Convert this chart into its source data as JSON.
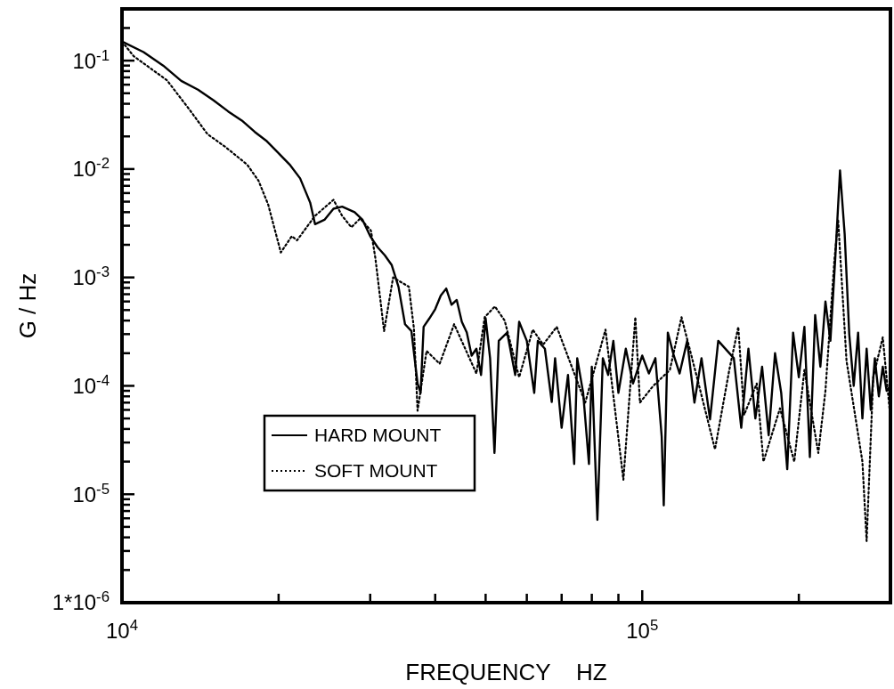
{
  "chart_data": {
    "type": "line",
    "xlabel": "FREQUENCY    HZ",
    "ylabel": "G / Hz",
    "log": "xy",
    "xlim": [
      10000,
      300000
    ],
    "ylim": [
      1e-06,
      0.3
    ],
    "xticks": [
      {
        "value": 10000,
        "label": "10$^{4}$"
      },
      {
        "value": 20000,
        "label": null
      },
      {
        "value": 30000,
        "label": null
      },
      {
        "value": 40000,
        "label": null
      },
      {
        "value": 50000,
        "label": null
      },
      {
        "value": 60000,
        "label": null
      },
      {
        "value": 70000,
        "label": null
      },
      {
        "value": 80000,
        "label": null
      },
      {
        "value": 90000,
        "label": null
      },
      {
        "value": 100000,
        "label": "10$^{5}$"
      },
      {
        "value": 200000,
        "label": null
      }
    ],
    "yticks": [
      {
        "value": 1e-06,
        "label": "1*10$^{-6}$"
      },
      {
        "value": 2e-06,
        "label": null
      },
      {
        "value": 3e-06,
        "label": null
      },
      {
        "value": 4e-06,
        "label": null
      },
      {
        "value": 5e-06,
        "label": null
      },
      {
        "value": 6e-06,
        "label": null
      },
      {
        "value": 7e-06,
        "label": null
      },
      {
        "value": 8e-06,
        "label": null
      },
      {
        "value": 9e-06,
        "label": null
      },
      {
        "value": 1e-05,
        "label": "10$^{-5}$"
      },
      {
        "value": 2e-05,
        "label": null
      },
      {
        "value": 3e-05,
        "label": null
      },
      {
        "value": 4e-05,
        "label": null
      },
      {
        "value": 5e-05,
        "label": null
      },
      {
        "value": 6e-05,
        "label": null
      },
      {
        "value": 7e-05,
        "label": null
      },
      {
        "value": 8e-05,
        "label": null
      },
      {
        "value": 9e-05,
        "label": null
      },
      {
        "value": 0.0001,
        "label": "10$^{-4}$"
      },
      {
        "value": 0.0002,
        "label": null
      },
      {
        "value": 0.0003,
        "label": null
      },
      {
        "value": 0.0004,
        "label": null
      },
      {
        "value": 0.0005,
        "label": null
      },
      {
        "value": 0.0006,
        "label": null
      },
      {
        "value": 0.0007,
        "label": null
      },
      {
        "value": 0.0008,
        "label": null
      },
      {
        "value": 0.0009,
        "label": null
      },
      {
        "value": 0.001,
        "label": "10$^{-3}$"
      },
      {
        "value": 0.002,
        "label": null
      },
      {
        "value": 0.003,
        "label": null
      },
      {
        "value": 0.004,
        "label": null
      },
      {
        "value": 0.005,
        "label": null
      },
      {
        "value": 0.006,
        "label": null
      },
      {
        "value": 0.007,
        "label": null
      },
      {
        "value": 0.008,
        "label": null
      },
      {
        "value": 0.009,
        "label": null
      },
      {
        "value": 0.01,
        "label": "10$^{-2}$"
      },
      {
        "value": 0.02,
        "label": null
      },
      {
        "value": 0.03,
        "label": null
      },
      {
        "value": 0.04,
        "label": null
      },
      {
        "value": 0.05,
        "label": null
      },
      {
        "value": 0.06,
        "label": null
      },
      {
        "value": 0.07,
        "label": null
      },
      {
        "value": 0.08,
        "label": null
      },
      {
        "value": 0.09,
        "label": null
      },
      {
        "value": 0.1,
        "label": "10$^{-1}$"
      },
      {
        "value": 0.2,
        "label": null
      }
    ],
    "grid": false,
    "legend": "bottom left",
    "marker": "none",
    "series": [
      {
        "name": "HARD MOUNT",
        "color": "#000000",
        "line_style": "solid",
        "x": [
          10000,
          11000,
          12000,
          13000,
          14000,
          15000,
          16000,
          17000,
          18000,
          19000,
          20000,
          21000,
          22000,
          23000,
          23500,
          24500,
          25500,
          26500,
          28000,
          29000,
          30000,
          31000,
          32000,
          33000,
          34000,
          35000,
          36000,
          37000,
          37500,
          38000,
          39000,
          40000,
          41000,
          42000,
          43000,
          44000,
          45000,
          46000,
          47000,
          48000,
          49000,
          50000,
          51000,
          52000,
          53000,
          55000,
          57000,
          58000,
          60000,
          62000,
          63000,
          65000,
          67000,
          68000,
          70000,
          72000,
          74000,
          75000,
          77000,
          79000,
          80000,
          82000,
          84000,
          86000,
          88000,
          90000,
          93000,
          96000,
          100000,
          103000,
          106000,
          109000,
          110000,
          112000,
          115000,
          118000,
          122000,
          126000,
          130000,
          135000,
          140000,
          150000,
          155000,
          160000,
          165000,
          170000,
          175000,
          180000,
          185000,
          190000,
          195000,
          200000,
          205000,
          210000,
          215000,
          220000,
          225000,
          230000,
          235000,
          240000,
          245000,
          250000,
          255000,
          260000,
          265000,
          270000,
          275000,
          280000,
          285000,
          290000,
          295000,
          300000
        ],
        "values": [
          0.15,
          0.12,
          0.09,
          0.065,
          0.054,
          0.043,
          0.034,
          0.028,
          0.022,
          0.018,
          0.014,
          0.011,
          0.0082,
          0.0049,
          0.0031,
          0.0034,
          0.0043,
          0.0045,
          0.004,
          0.0034,
          0.0024,
          0.0019,
          0.0016,
          0.0013,
          0.00082,
          0.00037,
          0.00032,
          0.000105,
          8.6e-05,
          0.00035,
          0.00042,
          0.00051,
          0.00068,
          0.00079,
          0.00056,
          0.00062,
          0.00039,
          0.00031,
          0.00019,
          0.00022,
          0.000126,
          0.00042,
          0.00018,
          2.4e-05,
          0.00026,
          0.00031,
          0.000126,
          0.00039,
          0.00026,
          8.6e-05,
          0.00026,
          0.00022,
          7.1e-05,
          0.00018,
          4.1e-05,
          0.000126,
          1.9e-05,
          0.00018,
          8.6e-05,
          1.9e-05,
          0.00015,
          5.8e-06,
          0.00018,
          0.000126,
          0.00026,
          8.6e-05,
          0.00022,
          0.000105,
          0.00019,
          0.00013,
          0.00018,
          3.4e-05,
          7.9e-06,
          0.00031,
          0.00019,
          0.00013,
          0.00026,
          7e-05,
          0.00018,
          4.9e-05,
          0.00026,
          0.00018,
          4.1e-05,
          0.00022,
          5e-05,
          0.00015,
          3.5e-05,
          0.0002,
          8.6e-05,
          1.7e-05,
          0.00031,
          0.00012,
          0.00035,
          2.2e-05,
          0.00045,
          0.00015,
          0.0006,
          0.00026,
          0.0015,
          0.0097,
          0.0025,
          0.0003,
          0.0001,
          0.00031,
          5e-05,
          0.00022,
          6e-05,
          0.00018,
          8e-05,
          0.00015,
          9e-05,
          0.0001
        ]
      },
      {
        "name": "SOFT MOUNT",
        "color": "#000000",
        "line_style": "dotted",
        "x": [
          10000,
          10530,
          12200,
          13500,
          14600,
          15800,
          17400,
          18300,
          19100,
          20200,
          21200,
          21700,
          23500,
          25500,
          26500,
          27600,
          28700,
          30100,
          30700,
          31900,
          33200,
          35600,
          36400,
          37000,
          38500,
          40800,
          43500,
          48000,
          49800,
          52100,
          54400,
          58000,
          61600,
          64500,
          68500,
          72500,
          77700,
          85000,
          92000,
          97000,
          99000,
          105000,
          113000,
          119000,
          128000,
          138000,
          147000,
          153000,
          157000,
          166000,
          171000,
          184000,
          196000,
          205000,
          218000,
          225000,
          234000,
          238000,
          247000,
          265000,
          270000,
          278000,
          290000,
          300000
        ],
        "values": [
          0.15,
          0.11,
          0.066,
          0.035,
          0.021,
          0.016,
          0.011,
          0.0078,
          0.0047,
          0.0017,
          0.0024,
          0.0022,
          0.0037,
          0.0052,
          0.0037,
          0.0029,
          0.0035,
          0.0027,
          0.0015,
          0.00032,
          0.001,
          0.00082,
          0.00034,
          5.9e-05,
          0.00021,
          0.00016,
          0.00037,
          0.00013,
          0.00043,
          0.00054,
          0.0004,
          0.00012,
          0.00033,
          0.00024,
          0.00035,
          0.00017,
          7e-05,
          0.00033,
          1.36e-05,
          0.00043,
          7e-05,
          0.0001,
          0.00014,
          0.00043,
          0.00011,
          2.6e-05,
          0.00014,
          0.00035,
          5.4e-05,
          0.000105,
          2e-05,
          6.2e-05,
          2e-05,
          0.00014,
          2.4e-05,
          9e-05,
          0.0014,
          0.0034,
          0.00017,
          2e-05,
          3.7e-06,
          0.00012,
          0.00028,
          5e-05
        ]
      }
    ]
  }
}
